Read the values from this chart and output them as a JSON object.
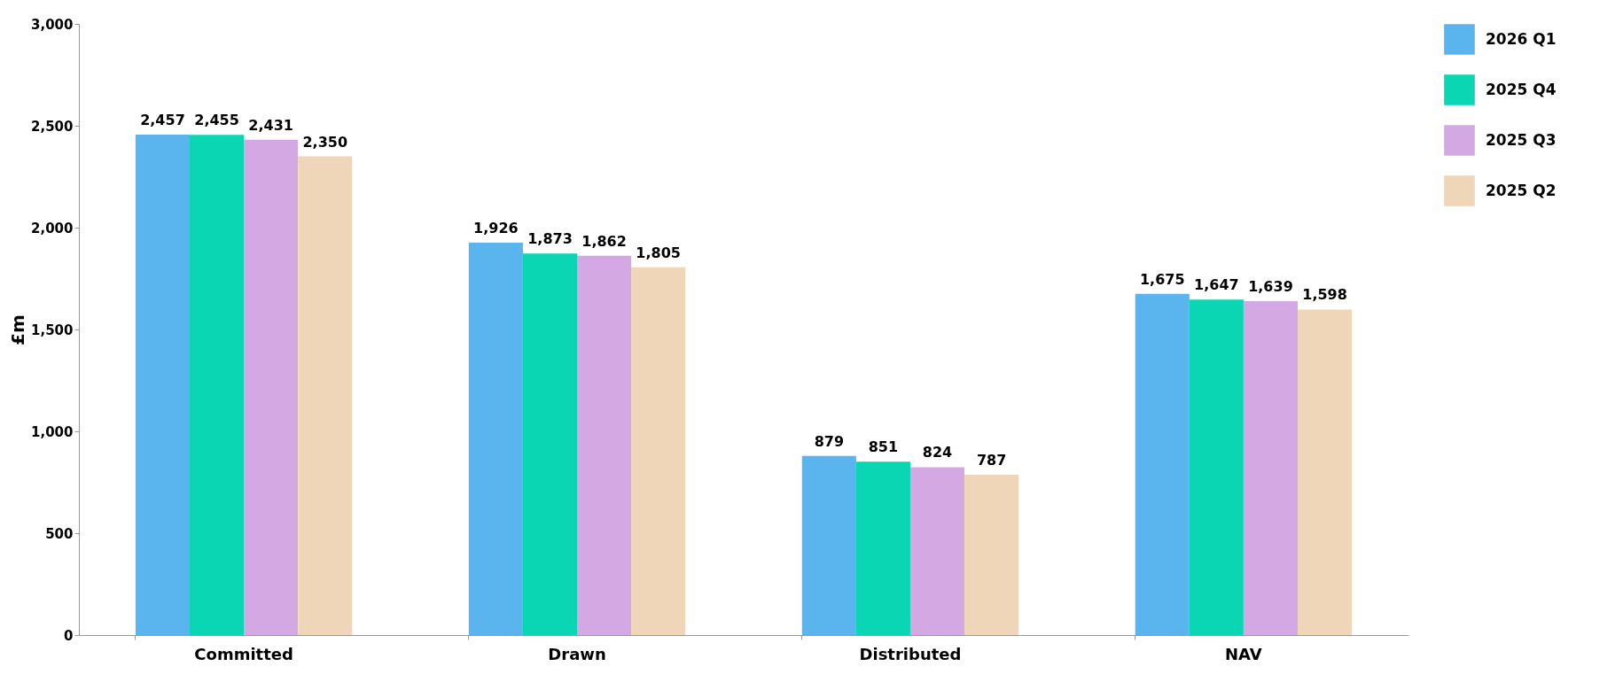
{
  "chart_data": {
    "type": "bar",
    "ylabel": "£m",
    "categories": [
      "Committed",
      "Drawn",
      "Distributed",
      "NAV"
    ],
    "series": [
      {
        "name": "2026 Q1",
        "color": "#5ab4ee",
        "values": [
          2457,
          1926,
          879,
          1675
        ],
        "value_labels": [
          "2,457",
          "1,926",
          "879",
          "1,675"
        ]
      },
      {
        "name": "2025 Q4",
        "color": "#0ad6b4",
        "values": [
          2455,
          1873,
          851,
          1647
        ],
        "value_labels": [
          "2,455",
          "1,873",
          "851",
          "1,647"
        ]
      },
      {
        "name": "2025 Q3",
        "color": "#d4a9e3",
        "values": [
          2431,
          1862,
          824,
          1639
        ],
        "value_labels": [
          "2,431",
          "1,862",
          "824",
          "1,639"
        ]
      },
      {
        "name": "2025 Q2",
        "color": "#f0d6b8",
        "values": [
          2350,
          1805,
          787,
          1598
        ],
        "value_labels": [
          "2,350",
          "1,805",
          "787",
          "1,598"
        ]
      }
    ],
    "ylim": [
      0,
      3000
    ],
    "yticks": [
      0,
      500,
      {
        "value": 1000,
        "label": "1,000"
      },
      {
        "value": 1500,
        "label": "1,500"
      },
      {
        "value": 2000,
        "label": "2,000"
      },
      {
        "value": 2500,
        "label": "2,500"
      },
      {
        "value": 3000,
        "label": "3,000"
      }
    ],
    "legend": "right",
    "grid": false
  }
}
